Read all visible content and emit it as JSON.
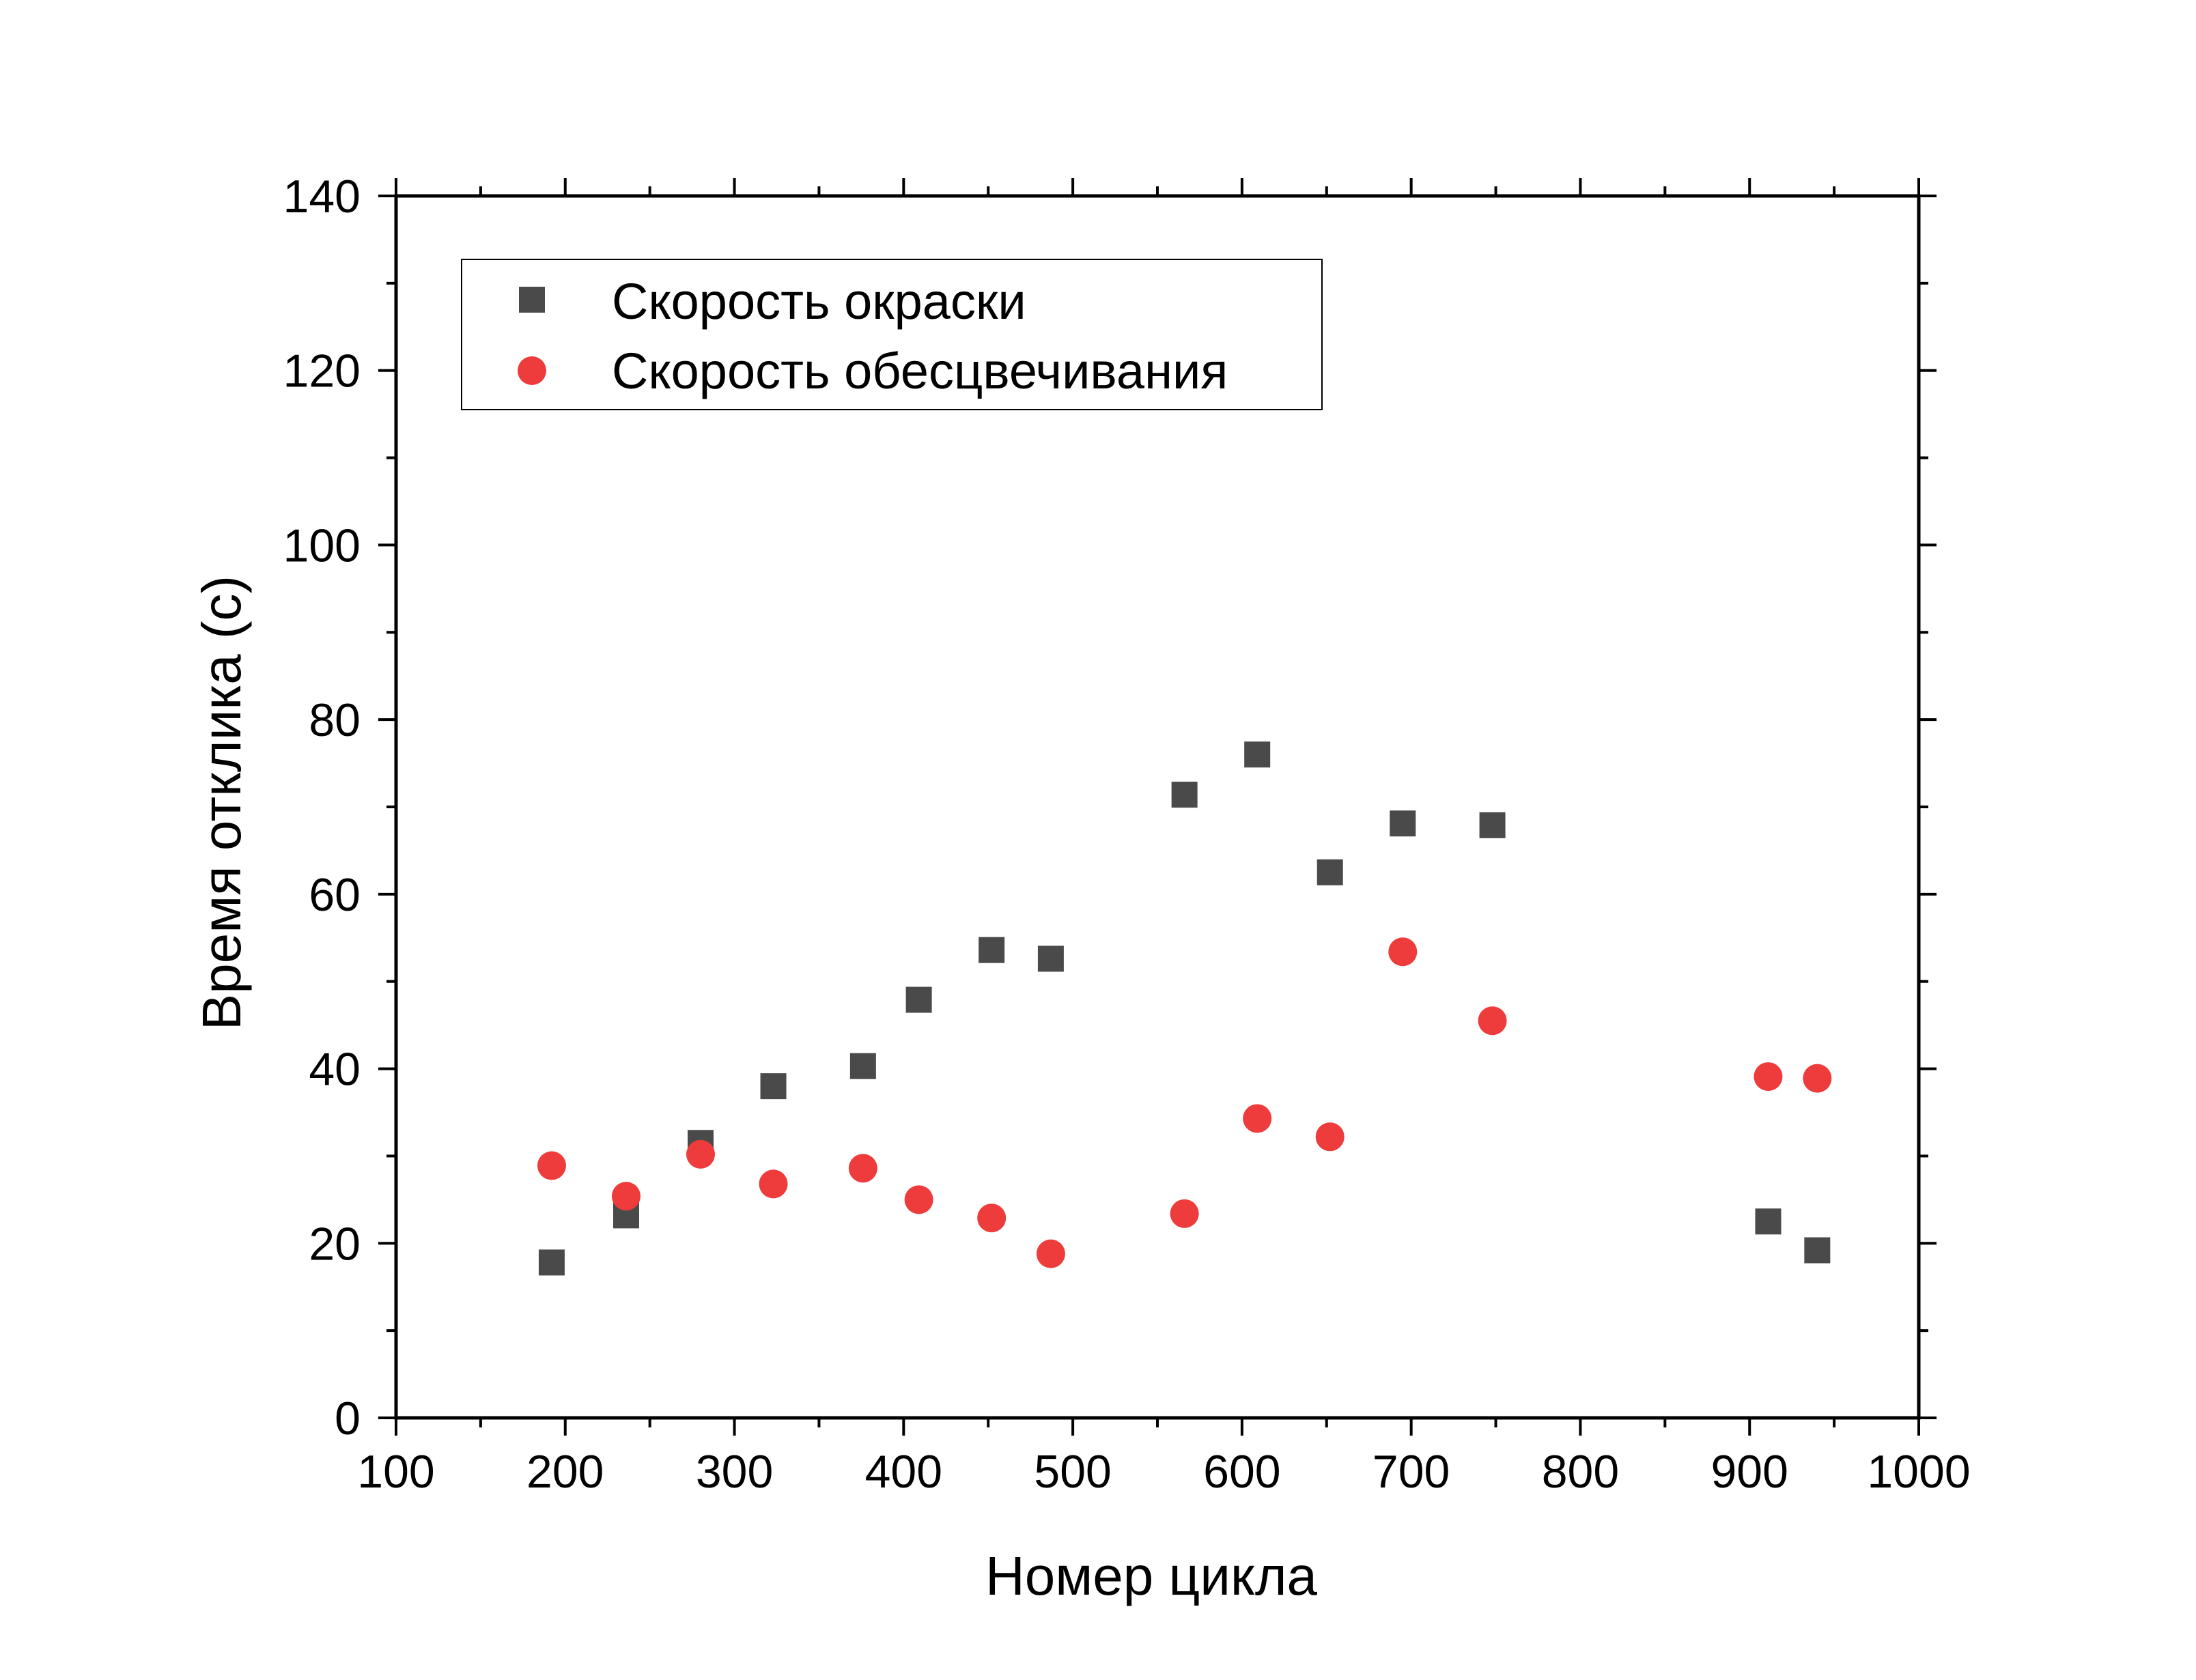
{
  "chart_data": {
    "type": "scatter",
    "title": "",
    "xlabel": "Номер цикла",
    "ylabel": "Время отклика (с)",
    "xlim": [
      100,
      1000
    ],
    "ylim": [
      0,
      140
    ],
    "xticks": [
      "100",
      "200",
      "300",
      "400",
      "500",
      "600",
      "700",
      "800",
      "900",
      "1000"
    ],
    "yticks": [
      "0",
      "20",
      "40",
      "60",
      "80",
      "100",
      "120",
      "140"
    ],
    "grid": false,
    "legend_position": "top-left",
    "series": [
      {
        "name": "Скорость окраски",
        "marker": "square",
        "color": "#4a4a4a",
        "x": [
          192,
          236,
          280,
          323,
          376,
          409,
          452,
          487,
          566,
          609,
          652,
          695,
          748,
          911,
          940
        ],
        "y": [
          17.8,
          23.2,
          31.5,
          38.0,
          40.3,
          47.9,
          53.6,
          52.6,
          71.4,
          76.0,
          62.5,
          68.1,
          67.9,
          22.5,
          19.2
        ]
      },
      {
        "name": "Скорость обесцвечивания",
        "marker": "circle",
        "color": "#ee3b3b",
        "x": [
          192,
          236,
          280,
          323,
          376,
          409,
          452,
          487,
          566,
          609,
          652,
          695,
          748,
          911,
          940
        ],
        "y": [
          28.9,
          25.4,
          30.2,
          26.8,
          28.6,
          25.0,
          22.9,
          18.8,
          23.4,
          34.3,
          32.2,
          53.4,
          45.5,
          39.1,
          38.9
        ]
      }
    ]
  }
}
